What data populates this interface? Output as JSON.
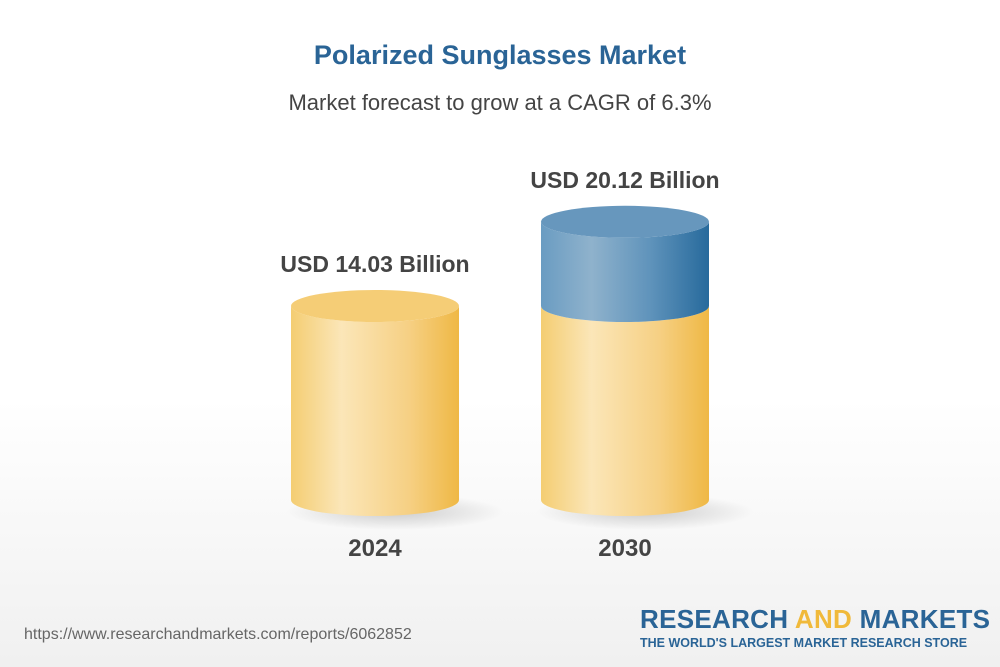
{
  "title": "Polarized Sunglasses Market",
  "subtitle": "Market forecast to grow at a CAGR of 6.3%",
  "chart_data": {
    "type": "bar",
    "style": "3d-cylinder",
    "title": "Polarized Sunglasses Market",
    "subtitle": "Market forecast to grow at a CAGR of 6.3%",
    "categories": [
      "2024",
      "2030"
    ],
    "values": [
      14.03,
      20.12
    ],
    "unit": "USD Billion",
    "data_labels": [
      "USD 14.03 Billion",
      "USD 20.12 Billion"
    ],
    "grid": false,
    "colors": {
      "base": "#f3c35a",
      "growth": "#2a6496"
    }
  },
  "footer": {
    "url": "https://www.researchandmarkets.com/reports/6062852",
    "logo_part1": "RESEARCH ",
    "logo_part2": "AND",
    "logo_part3": " MARKETS",
    "logo_tagline": "THE WORLD'S LARGEST MARKET RESEARCH STORE"
  }
}
